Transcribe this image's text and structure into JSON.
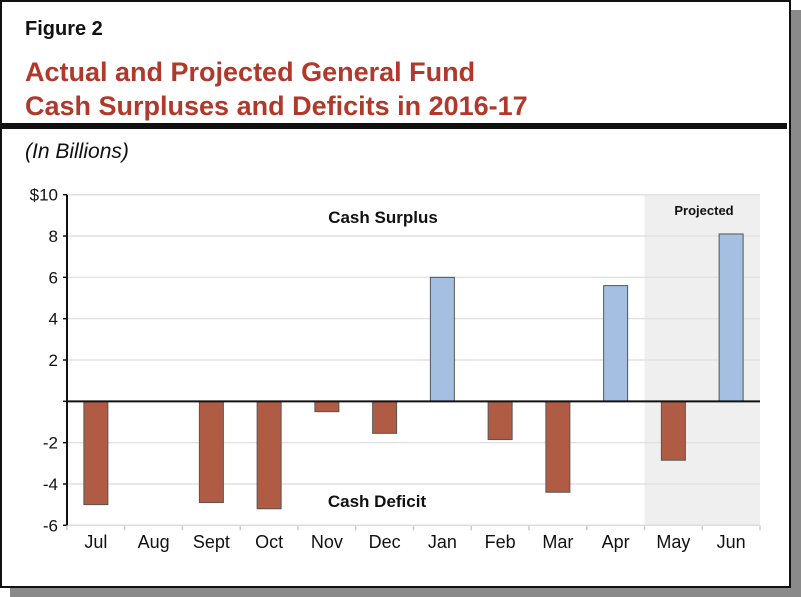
{
  "header": {
    "figure_label": "Figure 2",
    "title_line1": "Actual and Projected General Fund",
    "title_line2": "Cash Surpluses and Deficits in 2016-17",
    "units": "(In Billions)"
  },
  "chart_data": {
    "type": "bar",
    "categories": [
      "Jul",
      "Aug",
      "Sept",
      "Oct",
      "Nov",
      "Dec",
      "Jan",
      "Feb",
      "Mar",
      "Apr",
      "May",
      "Jun"
    ],
    "values": [
      -5.0,
      0.0,
      -4.9,
      -5.2,
      -0.5,
      -1.55,
      6.0,
      -1.85,
      -4.4,
      5.6,
      -2.85,
      8.1
    ],
    "ylim": [
      -6,
      10
    ],
    "yticks": [
      10,
      8,
      6,
      4,
      2,
      0,
      -2,
      -4,
      -6
    ],
    "ytick_labels": [
      "$10",
      "8",
      "6",
      "4",
      "2",
      "",
      "-2",
      "-4",
      "-6"
    ],
    "grid": true,
    "projected_categories": [
      "May",
      "Jun"
    ],
    "annotations": {
      "surplus": "Cash Surplus",
      "deficit": "Cash Deficit",
      "projected": "Projected"
    },
    "colors": {
      "positive": "#a5bfe3",
      "negative": "#b05c44",
      "projected_shade": "#efefef",
      "title": "#b0392b"
    }
  }
}
